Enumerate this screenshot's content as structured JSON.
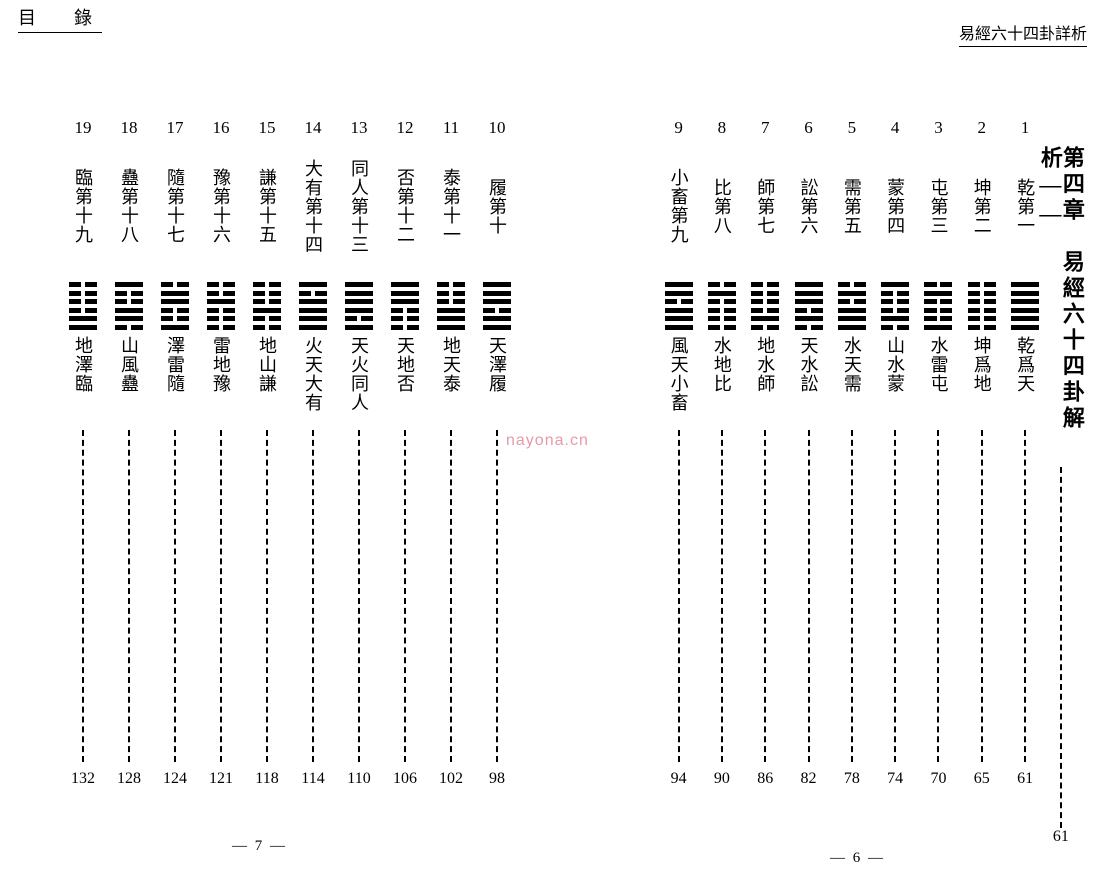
{
  "header_left": "目　錄",
  "header_right": "易經六十四卦詳析",
  "watermark": "nayona.cn",
  "chapter": {
    "title": "第四章　易經六十四卦解析——",
    "page": "61"
  },
  "right_entries": [
    {
      "num": "1",
      "name": "乾第一",
      "hex": "111111",
      "hex_name": "乾爲天",
      "page": "61"
    },
    {
      "num": "2",
      "name": "坤第二",
      "hex": "000000",
      "hex_name": "坤爲地",
      "page": "65"
    },
    {
      "num": "3",
      "name": "屯第三",
      "hex": "010001",
      "hex_name": "水雷屯",
      "page": "70"
    },
    {
      "num": "4",
      "name": "蒙第四",
      "hex": "100010",
      "hex_name": "山水蒙",
      "page": "74"
    },
    {
      "num": "5",
      "name": "需第五",
      "hex": "010111",
      "hex_name": "水天需",
      "page": "78"
    },
    {
      "num": "6",
      "name": "訟第六",
      "hex": "111010",
      "hex_name": "天水訟",
      "page": "82"
    },
    {
      "num": "7",
      "name": "師第七",
      "hex": "000010",
      "hex_name": "地水師",
      "page": "86"
    },
    {
      "num": "8",
      "name": "比第八",
      "hex": "010000",
      "hex_name": "水地比",
      "page": "90"
    },
    {
      "num": "9",
      "name": "小畜第九",
      "hex": "110111",
      "hex_name": "風天小畜",
      "page": "94"
    }
  ],
  "left_entries": [
    {
      "num": "10",
      "name": "履第十",
      "hex": "111011",
      "hex_name": "天澤履",
      "page": "98"
    },
    {
      "num": "11",
      "name": "泰第十一",
      "hex": "000111",
      "hex_name": "地天泰",
      "page": "102"
    },
    {
      "num": "12",
      "name": "否第十二",
      "hex": "111000",
      "hex_name": "天地否",
      "page": "106"
    },
    {
      "num": "13",
      "name": "同人第十三",
      "hex": "111101",
      "hex_name": "天火同人",
      "page": "110"
    },
    {
      "num": "14",
      "name": "大有第十四",
      "hex": "101111",
      "hex_name": "火天大有",
      "page": "114"
    },
    {
      "num": "15",
      "name": "謙第十五",
      "hex": "000100",
      "hex_name": "地山謙",
      "page": "118"
    },
    {
      "num": "16",
      "name": "豫第十六",
      "hex": "001000",
      "hex_name": "雷地豫",
      "page": "121"
    },
    {
      "num": "17",
      "name": "隨第十七",
      "hex": "011001",
      "hex_name": "澤雷隨",
      "page": "124"
    },
    {
      "num": "18",
      "name": "蠱第十八",
      "hex": "100110",
      "hex_name": "山風蠱",
      "page": "128"
    },
    {
      "num": "19",
      "name": "臨第十九",
      "hex": "000011",
      "hex_name": "地澤臨",
      "page": "132"
    }
  ],
  "footer_right": "— 6 —",
  "footer_left": "— 7 —"
}
